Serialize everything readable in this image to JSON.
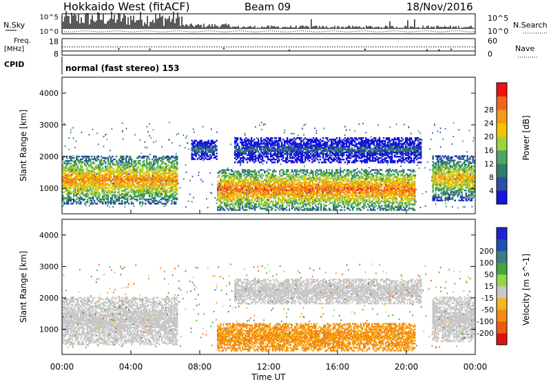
{
  "header": {
    "title": "Hokkaido West (fitACF)",
    "beam": "Beam 09",
    "date": "18/Nov/2016"
  },
  "noise_panel": {
    "left_label": "N.Sky",
    "right_label": "N.Search",
    "left_ticks": [
      "10^5",
      "10^0"
    ],
    "right_ticks": [
      "10^5",
      "10^0"
    ]
  },
  "freq_panel": {
    "left_label_1": "Freq.",
    "left_label_2": "[MHz]",
    "right_label": "Nave",
    "left_ticks": [
      "18",
      "8"
    ],
    "right_ticks": [
      "60",
      "0"
    ]
  },
  "cpid_panel": {
    "label": "CPID",
    "text": "normal (fast stereo) 153"
  },
  "time_axis": {
    "label": "Time UT",
    "ticks": [
      "00:00",
      "04:00",
      "08:00",
      "12:00",
      "16:00",
      "20:00",
      "00:00"
    ]
  },
  "colors": {
    "power": [
      "#1515d8",
      "#2a4fa6",
      "#2f7e6a",
      "#4ea564",
      "#9fd23b",
      "#f2c300",
      "#f39a18",
      "#f3661e",
      "#f01010"
    ],
    "velocity": [
      "#e01313",
      "#f05a10",
      "#f58a12",
      "#f6b41e",
      "#c8c8c8",
      "#93d64a",
      "#41a93b",
      "#3f7d7f",
      "#1f4fb0",
      "#1d24d1"
    ]
  },
  "chart_data": [
    {
      "type": "heatmap",
      "name": "power",
      "ylabel": "Slant Range [km]",
      "yticks": [
        "1000",
        "2000",
        "3000",
        "4000"
      ],
      "ylim": [
        200,
        4500
      ],
      "xlim_hours": [
        0,
        24
      ],
      "colorbar": {
        "label": "Power [dB]",
        "ticks": [
          "4",
          "8",
          "12",
          "16",
          "20",
          "24",
          "28"
        ],
        "range": [
          0,
          32
        ]
      },
      "echo_regions": [
        {
          "t_start": 0.0,
          "t_end": 6.7,
          "r_lo": 500,
          "r_hi": 2000,
          "power_dB": 24
        },
        {
          "t_start": 7.5,
          "t_end": 9.0,
          "r_lo": 1900,
          "r_hi": 2500,
          "power_dB": 10
        },
        {
          "t_start": 9.0,
          "t_end": 20.5,
          "r_lo": 300,
          "r_hi": 1600,
          "power_dB": 26
        },
        {
          "t_start": 10.0,
          "t_end": 20.8,
          "r_lo": 1800,
          "r_hi": 2600,
          "power_dB": 8
        },
        {
          "t_start": 21.5,
          "t_end": 24.0,
          "r_lo": 600,
          "r_hi": 2000,
          "power_dB": 22
        }
      ]
    },
    {
      "type": "heatmap",
      "name": "velocity",
      "ylabel": "Slant Range [km]",
      "yticks": [
        "1000",
        "2000",
        "3000",
        "4000"
      ],
      "ylim": [
        200,
        4500
      ],
      "xlim_hours": [
        0,
        24
      ],
      "colorbar": {
        "label": "Velocity [m s^-1]",
        "ticks": [
          "-200",
          "-100",
          "-50",
          "-15",
          "15",
          "50",
          "100",
          "200"
        ],
        "range": [
          -250,
          250
        ]
      },
      "echo_regions": [
        {
          "t_start": 0.0,
          "t_end": 6.7,
          "r_lo": 500,
          "r_hi": 2000,
          "velocity": 0
        },
        {
          "t_start": 9.0,
          "t_end": 20.5,
          "r_lo": 300,
          "r_hi": 1200,
          "velocity": -60
        },
        {
          "t_start": 10.0,
          "t_end": 20.8,
          "r_lo": 1800,
          "r_hi": 2600,
          "velocity": 0
        },
        {
          "t_start": 21.5,
          "t_end": 24.0,
          "r_lo": 600,
          "r_hi": 2000,
          "velocity": 0
        }
      ]
    }
  ]
}
